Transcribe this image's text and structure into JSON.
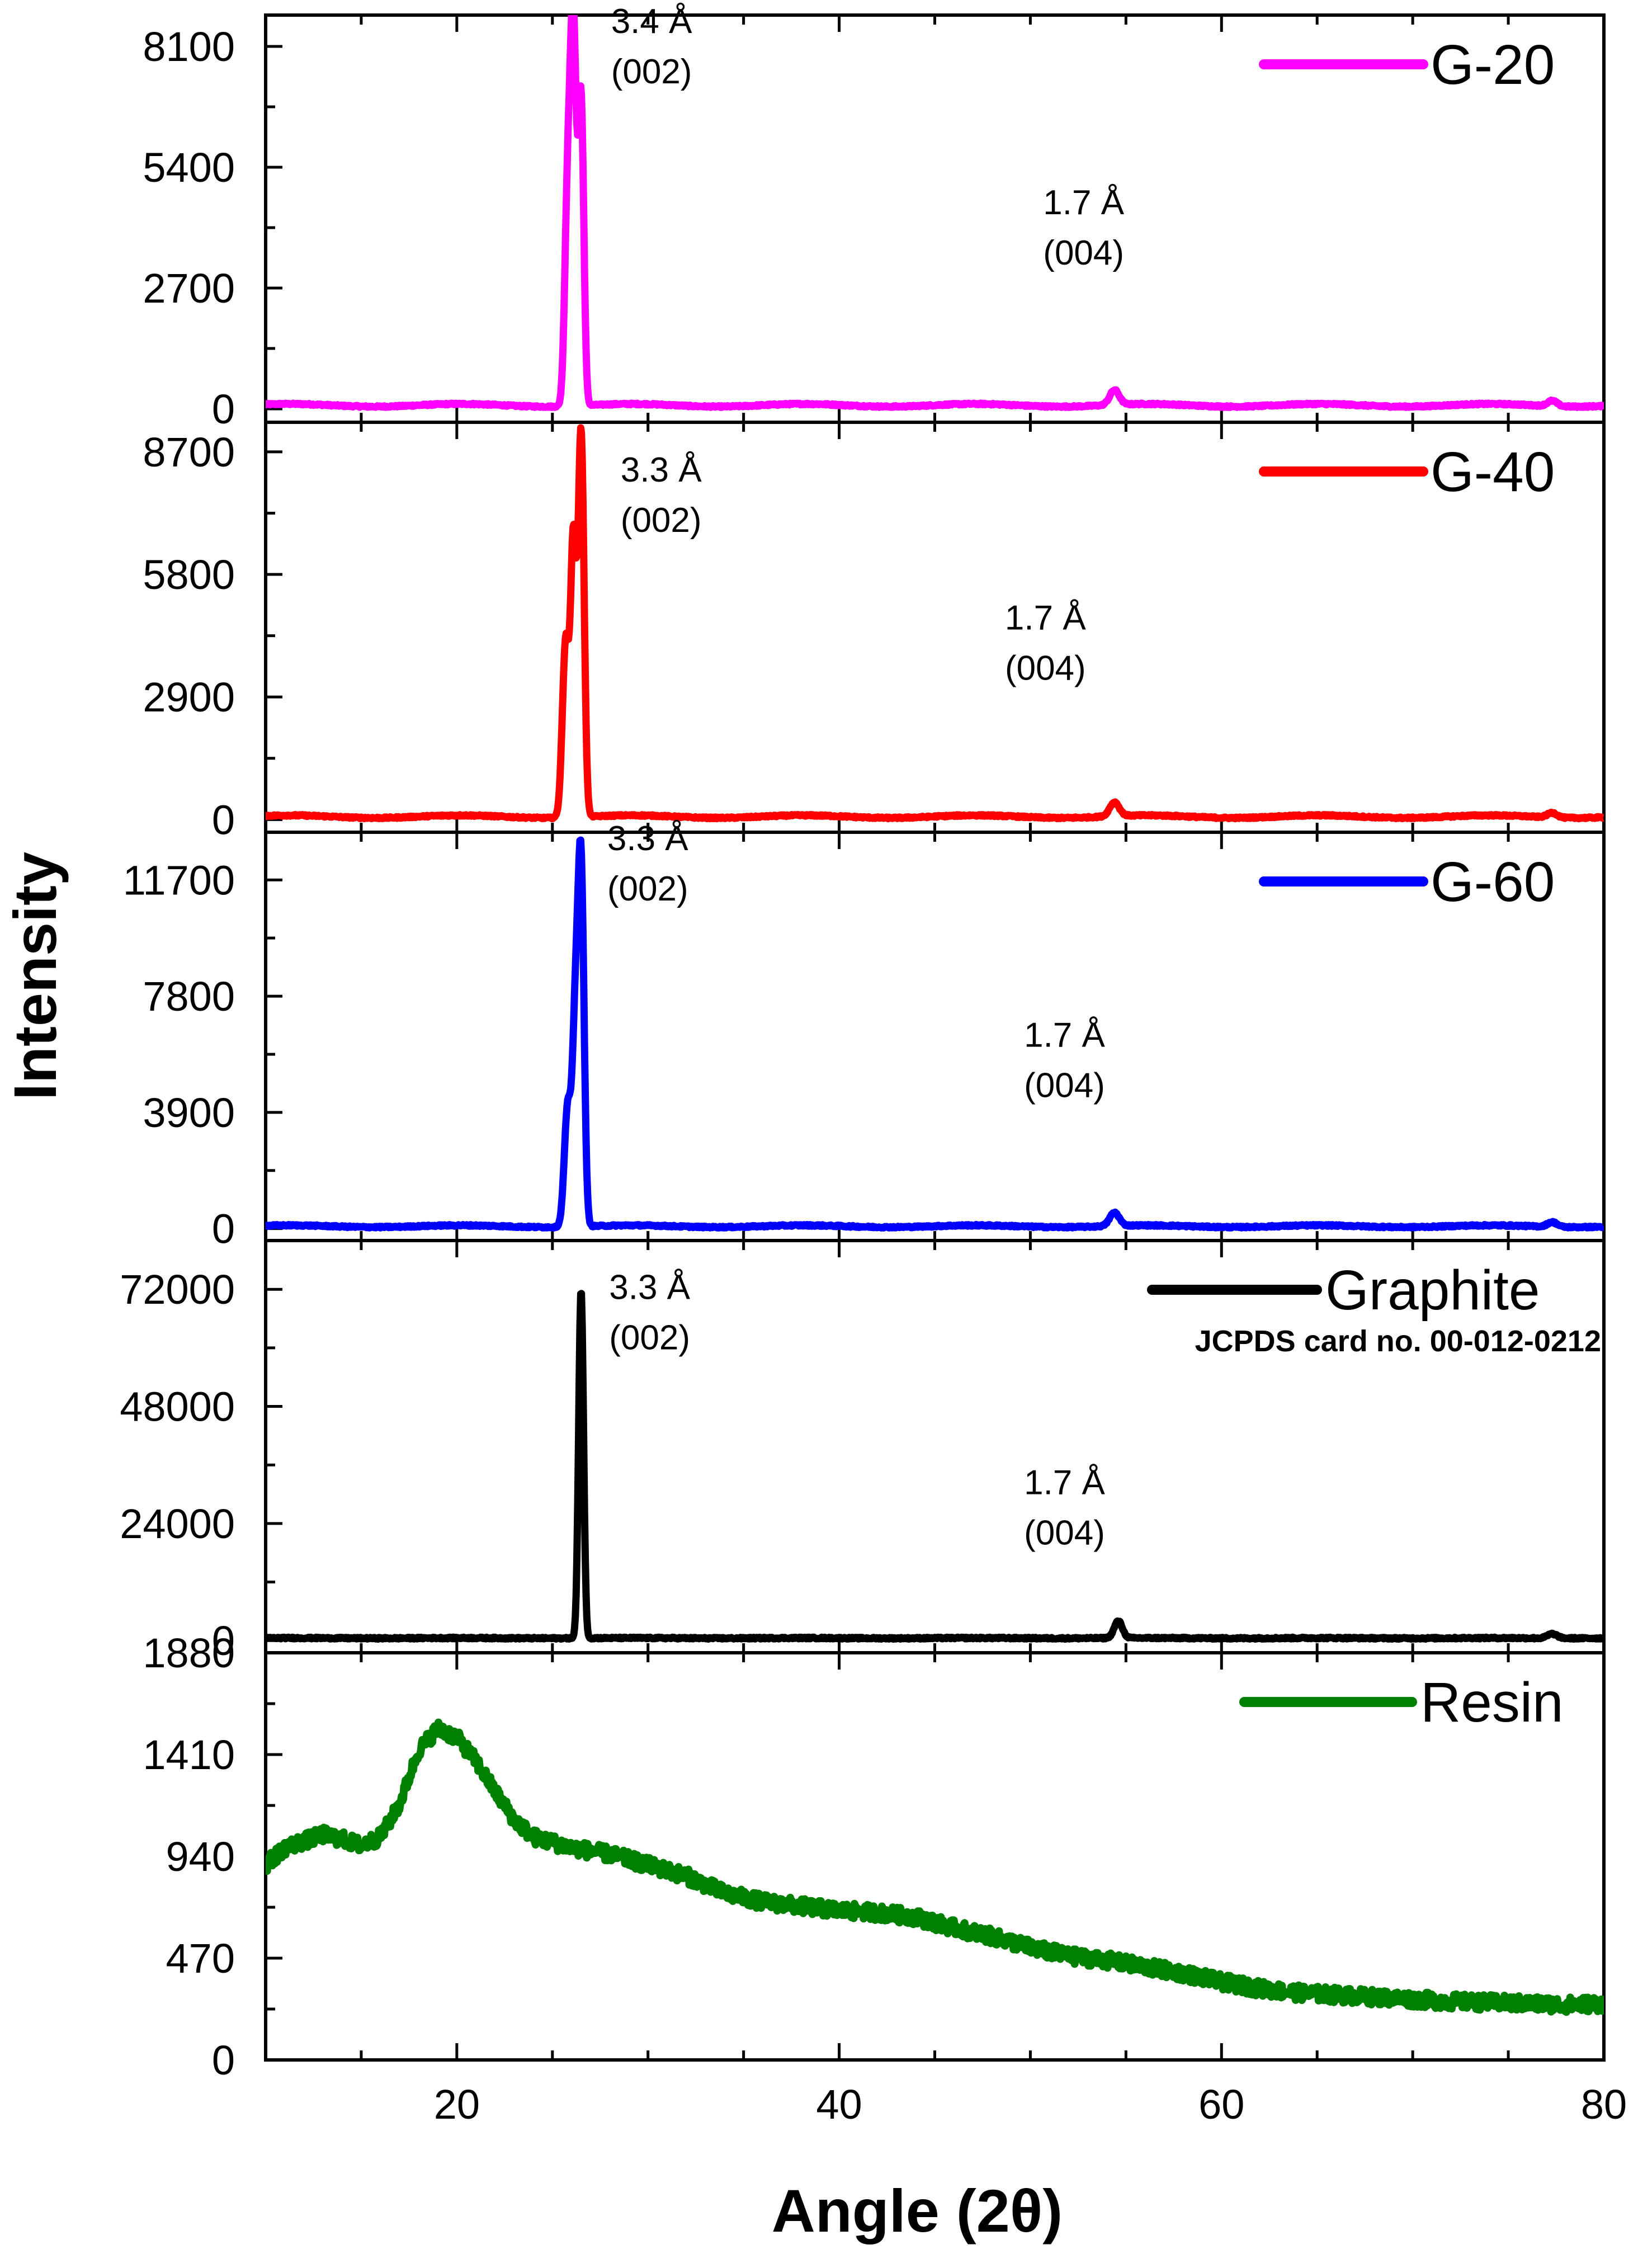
{
  "chart_data": {
    "type": "line",
    "xlabel": "Angle (2θ)",
    "ylabel": "Intensity",
    "xlim": [
      10,
      80
    ],
    "xticks": [
      20,
      40,
      60,
      80
    ],
    "panels": [
      {
        "name": "G-20",
        "color": "#ff00ff",
        "ylim": [
          -300,
          8800
        ],
        "yticks": [
          0,
          2700,
          5400,
          8100
        ],
        "baseline": 80,
        "peaks": [
          {
            "x": 26.1,
            "y": 8200,
            "w": 0.22
          },
          {
            "x": 26.5,
            "y": 6800,
            "w": 0.2
          },
          {
            "x": 25.8,
            "y": 4600,
            "w": 0.22
          },
          {
            "x": 54.4,
            "y": 330,
            "w": 0.35
          },
          {
            "x": 77.3,
            "y": 120,
            "w": 0.35
          }
        ],
        "annotations": [
          {
            "x": 27.7,
            "y": 8400,
            "lines": [
              "3.4 Å",
              "(002)"
            ]
          },
          {
            "x": 50.3,
            "y": 4350,
            "lines": [
              "1.7 Å",
              "(004)"
            ]
          }
        ]
      },
      {
        "name": "G-40",
        "color": "#ff0000",
        "ylim": [
          -300,
          9400
        ],
        "yticks": [
          0,
          2900,
          5800,
          8700
        ],
        "baseline": 70,
        "peaks": [
          {
            "x": 26.5,
            "y": 9100,
            "w": 0.22
          },
          {
            "x": 26.1,
            "y": 6300,
            "w": 0.2
          },
          {
            "x": 25.7,
            "y": 4200,
            "w": 0.25
          },
          {
            "x": 54.4,
            "y": 330,
            "w": 0.35
          },
          {
            "x": 77.3,
            "y": 110,
            "w": 0.35
          }
        ],
        "annotations": [
          {
            "x": 28.2,
            "y": 8000,
            "lines": [
              "3.3 Å",
              "(002)"
            ]
          },
          {
            "x": 48.3,
            "y": 4500,
            "lines": [
              "1.7 Å",
              "(004)"
            ]
          }
        ]
      },
      {
        "name": "G-60",
        "color": "#0000ff",
        "ylim": [
          -400,
          13300
        ],
        "yticks": [
          0,
          3900,
          7800,
          11700
        ],
        "baseline": 80,
        "peaks": [
          {
            "x": 26.5,
            "y": 11800,
            "w": 0.22
          },
          {
            "x": 26.2,
            "y": 6500,
            "w": 0.22
          },
          {
            "x": 25.8,
            "y": 4000,
            "w": 0.25
          },
          {
            "x": 54.4,
            "y": 450,
            "w": 0.35
          },
          {
            "x": 77.3,
            "y": 160,
            "w": 0.35
          }
        ],
        "annotations": [
          {
            "x": 27.5,
            "y": 12700,
            "lines": [
              "3.3 Å",
              "(002)"
            ]
          },
          {
            "x": 49.3,
            "y": 6100,
            "lines": [
              "1.7 Å",
              "(004)"
            ]
          }
        ]
      },
      {
        "name": "Graphite",
        "note": "JCPDS card no. 00-012-0212",
        "color": "#000000",
        "ylim": [
          -2500,
          82000
        ],
        "yticks": [
          0,
          24000,
          48000,
          72000
        ],
        "ytick_labels": [
          "0",
          "24000",
          "48000",
          "72000"
        ],
        "baseline": 500,
        "peaks": [
          {
            "x": 26.5,
            "y": 71500,
            "w": 0.18
          },
          {
            "x": 54.6,
            "y": 3500,
            "w": 0.3
          },
          {
            "x": 77.3,
            "y": 900,
            "w": 0.35
          }
        ],
        "annotations": [
          {
            "x": 27.6,
            "y": 70000,
            "lines": [
              "3.3 Å",
              "(002)"
            ]
          },
          {
            "x": 49.3,
            "y": 30000,
            "lines": [
              "1.7 Å",
              "(004)"
            ]
          }
        ]
      },
      {
        "name": "Resin",
        "color": "#008000",
        "ylim": [
          0,
          1880
        ],
        "yticks": [
          0,
          470,
          940,
          1410,
          1880
        ],
        "ytick_labels": [
          "0",
          "470",
          "940",
          "1410",
          "1880"
        ],
        "profile_x": [
          10,
          11,
          12,
          13,
          14,
          15,
          16,
          17,
          18,
          19,
          20,
          21,
          22,
          23,
          24,
          26,
          28,
          30,
          32,
          34,
          36,
          38,
          40,
          42,
          44,
          46,
          48,
          50,
          52,
          54,
          56,
          58,
          60,
          62,
          64,
          66,
          68,
          70,
          72,
          74,
          76,
          78,
          80
        ],
        "profile_y": [
          900,
          980,
          1010,
          1040,
          1020,
          990,
          1030,
          1180,
          1430,
          1530,
          1490,
          1380,
          1240,
          1110,
          1030,
          980,
          950,
          900,
          850,
          770,
          730,
          710,
          690,
          680,
          660,
          610,
          570,
          520,
          480,
          460,
          430,
          400,
          360,
          330,
          310,
          300,
          290,
          280,
          270,
          265,
          260,
          255,
          260
        ],
        "noise": 35
      }
    ]
  }
}
